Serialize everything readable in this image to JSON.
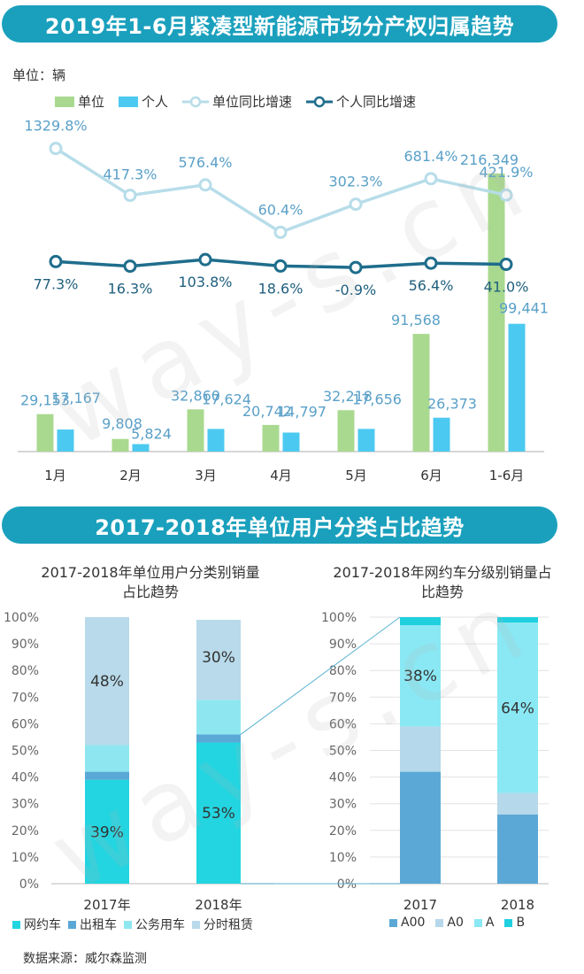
{
  "banner1": "2019年1-6月紧凑型新能源市场分产权归属趋势",
  "banner2": "2017-2018年单位用户分类占比趋势",
  "unit_label": "单位：辆",
  "watermark": "way-s.cn",
  "colors": {
    "banner": "#1aa0bd",
    "unit_bar": "#a9d98f",
    "personal_bar": "#4cc9f0",
    "unit_line": "#b7dde9",
    "personal_line": "#1f6d8c",
    "c_wangyue": "#23d5e0",
    "c_chuzu": "#5aa8d6",
    "c_gongwu": "#8ee7f0",
    "c_fenshi": "#b8daea",
    "c_A00": "#5ba8d6",
    "c_A0": "#b5d8ea",
    "c_A": "#8ae8f4",
    "c_B": "#1fd0df"
  },
  "legend1": [
    "单位",
    "个人",
    "单位同比增速",
    "个人同比增速"
  ],
  "chart_data": [
    {
      "type": "bar",
      "categories": [
        "1月",
        "2月",
        "3月",
        "4月",
        "5月",
        "6月",
        "1-6月"
      ],
      "series": [
        {
          "name": "单位",
          "values": [
            29153,
            9808,
            32860,
            20742,
            32218,
            91568,
            216349
          ],
          "labels": [
            "29,153",
            "9,808",
            "32,860",
            "20,742",
            "32,218",
            "91,568",
            "216,349"
          ]
        },
        {
          "name": "个人",
          "values": [
            17167,
            5824,
            17624,
            14797,
            17656,
            26373,
            99441
          ],
          "labels": [
            "17,167",
            "5,824",
            "17,624",
            "14,797",
            "17,656",
            "26,373",
            "99,441"
          ]
        }
      ],
      "lines": [
        {
          "name": "单位同比增速",
          "values": [
            1329.8,
            417.3,
            576.4,
            60.4,
            302.3,
            681.4,
            421.9
          ],
          "labels": [
            "1329.8%",
            "417.3%",
            "576.4%",
            "60.4%",
            "302.3%",
            "681.4%",
            "421.9%"
          ]
        },
        {
          "name": "个人同比增速",
          "values": [
            77.3,
            16.3,
            103.8,
            18.6,
            -0.9,
            56.4,
            41.0
          ],
          "labels": [
            "77.3%",
            "16.3%",
            "103.8%",
            "18.6%",
            "-0.9%",
            "56.4%",
            "41.0%"
          ]
        }
      ],
      "ylabel": "单位：辆"
    },
    {
      "type": "bar",
      "stacked": true,
      "title": "2017-2018年单位用户分类别销量占比趋势",
      "categories": [
        "2017年",
        "2018年"
      ],
      "series": [
        {
          "name": "网约车",
          "values": [
            39,
            53
          ]
        },
        {
          "name": "出租车",
          "values": [
            3,
            3
          ]
        },
        {
          "name": "公务用车",
          "values": [
            10,
            13
          ]
        },
        {
          "name": "分时租赁",
          "values": [
            48,
            30
          ]
        }
      ],
      "data_labels": [
        [
          "39%",
          "48%"
        ],
        [
          "53%",
          "30%"
        ]
      ],
      "ytick_labels": [
        "0%",
        "10%",
        "20%",
        "30%",
        "40%",
        "50%",
        "60%",
        "70%",
        "80%",
        "90%",
        "100%"
      ]
    },
    {
      "type": "bar",
      "stacked": true,
      "title": "2017-2018年网约车分级别销量占比趋势",
      "categories": [
        "2017",
        "2018"
      ],
      "series": [
        {
          "name": "A00",
          "values": [
            42,
            26
          ]
        },
        {
          "name": "A0",
          "values": [
            17,
            8
          ]
        },
        {
          "name": "A",
          "values": [
            38,
            64
          ]
        },
        {
          "name": "B",
          "values": [
            3,
            2
          ]
        }
      ],
      "data_labels": [
        [
          "38%"
        ],
        [
          "64%"
        ]
      ],
      "ytick_labels": [
        "0%",
        "10%",
        "20%",
        "30%",
        "40%",
        "50%",
        "60%",
        "70%",
        "80%",
        "90%",
        "100%"
      ]
    }
  ],
  "legend_left": [
    "网约车",
    "出租车",
    "公务用车",
    "分时租赁"
  ],
  "legend_right": [
    "A00",
    "A0",
    "A",
    "B"
  ],
  "source": "数据来源：威尔森监测"
}
